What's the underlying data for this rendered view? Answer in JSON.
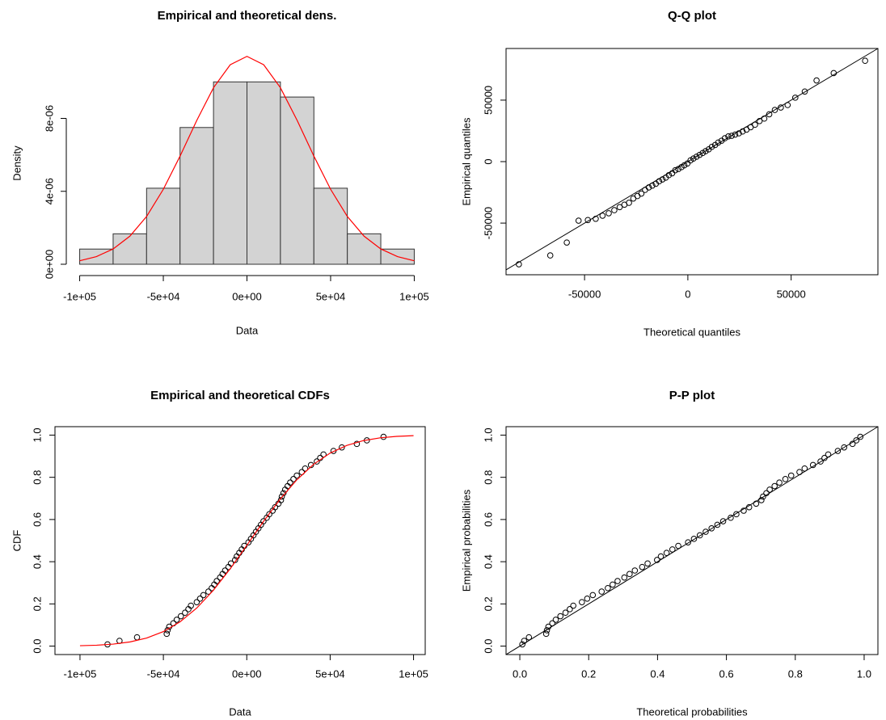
{
  "chart_data": [
    {
      "type": "histogram",
      "title": "Empirical and theoretical dens.",
      "x_label": "Data",
      "y_label": "Density",
      "bins": [
        -100000,
        -80000,
        -60000,
        -40000,
        -20000,
        0,
        20000,
        40000,
        60000,
        80000,
        100000
      ],
      "values": [
        8.33e-07,
        1.67e-06,
        4.17e-06,
        7.5e-06,
        1e-05,
        1e-05,
        9.17e-06,
        4.17e-06,
        1.67e-06,
        8.33e-07
      ],
      "color": "#d3d3d3",
      "series": [
        {
          "type": "line",
          "color": "#ff0000",
          "x": [
            -100000,
            -90000,
            -80000,
            -70000,
            -60000,
            -50000,
            -40000,
            -30000,
            -20000,
            -10000,
            0,
            10000,
            20000,
            30000,
            40000,
            50000,
            60000,
            70000,
            80000,
            90000,
            100000
          ],
          "values": [
            1.9e-07,
            4.2e-07,
            8.4e-07,
            1.54e-06,
            2.62e-06,
            4.11e-06,
            5.93e-06,
            7.89e-06,
            9.68e-06,
            1.094e-05,
            1.14e-05,
            1.094e-05,
            9.68e-06,
            7.89e-06,
            5.93e-06,
            4.11e-06,
            2.62e-06,
            1.54e-06,
            8.4e-07,
            4.2e-07,
            1.9e-07
          ]
        }
      ],
      "xlim": [
        -108000,
        108000
      ],
      "ylim": [
        -6.2e-07,
        1.17e-05
      ],
      "xticks": [
        {
          "value": -100000,
          "label": "-1e+05"
        },
        {
          "value": -50000,
          "label": "-5e+04"
        },
        {
          "value": 0,
          "label": "0e+00"
        },
        {
          "value": 50000,
          "label": "5e+04"
        },
        {
          "value": 100000,
          "label": "1e+05"
        }
      ],
      "yticks": [
        {
          "value": 0,
          "label": "0e+00"
        },
        {
          "value": 4e-06,
          "label": "4e-06"
        },
        {
          "value": 8e-06,
          "label": "8e-06"
        }
      ]
    },
    {
      "type": "scatter",
      "title": "Q-Q plot",
      "x_label": "Theoretical quantiles",
      "y_label": "Empirical quantiles",
      "diagonal": true,
      "series": [
        {
          "type": "points",
          "color": "#000000",
          "x": [
            -81800,
            -66600,
            -58600,
            -52900,
            -48400,
            -44600,
            -41300,
            -38300,
            -35600,
            -33000,
            -30700,
            -28500,
            -26400,
            -24400,
            -22500,
            -20700,
            -18900,
            -17200,
            -15500,
            -13900,
            -12300,
            -10700,
            -9200,
            -7600,
            -6100,
            -4600,
            -3100,
            -1700,
            -200,
            1300,
            2700,
            4200,
            5700,
            7200,
            8600,
            10100,
            11600,
            13200,
            14700,
            16300,
            17900,
            19600,
            21200,
            22900,
            24700,
            26500,
            28400,
            30400,
            32500,
            34700,
            37000,
            39400,
            42100,
            45000,
            48300,
            52000,
            56600,
            62300,
            70600,
            85800
          ],
          "values": [
            -83500,
            -76300,
            -65800,
            -48000,
            -47500,
            -46500,
            -44000,
            -42000,
            -39500,
            -37000,
            -35000,
            -33500,
            -30000,
            -28000,
            -26000,
            -23000,
            -21000,
            -19500,
            -18000,
            -16000,
            -14500,
            -13000,
            -11000,
            -9500,
            -7000,
            -6000,
            -4500,
            -3000,
            -1500,
            1000,
            2500,
            4000,
            5500,
            7000,
            8500,
            10000,
            12000,
            13500,
            15500,
            17000,
            19000,
            20500,
            21000,
            22000,
            23000,
            24500,
            26000,
            28000,
            30000,
            33000,
            35000,
            38500,
            42000,
            44000,
            46000,
            52000,
            57000,
            66000,
            72000,
            82000
          ]
        }
      ],
      "xlim": [
        -88000,
        92000
      ],
      "ylim": [
        -92000,
        92000
      ],
      "xticks": [
        -50000,
        0,
        50000
      ],
      "yticks": [
        -50000,
        0,
        50000
      ]
    },
    {
      "type": "scatter",
      "title": "Empirical and theoretical CDFs",
      "x_label": "Data",
      "y_label": "CDF",
      "series": [
        {
          "type": "points",
          "color": "#000000",
          "x": [
            -83500,
            -76300,
            -65800,
            -48000,
            -47500,
            -46500,
            -44000,
            -42000,
            -39500,
            -37000,
            -35000,
            -33500,
            -30000,
            -28000,
            -26000,
            -23000,
            -21000,
            -19500,
            -18000,
            -16000,
            -14500,
            -13000,
            -11000,
            -9500,
            -7000,
            -6000,
            -4500,
            -3000,
            -1500,
            1000,
            2500,
            4000,
            5500,
            7000,
            8500,
            10000,
            12000,
            13500,
            15500,
            17000,
            19000,
            20500,
            21000,
            22000,
            23000,
            24500,
            26000,
            28000,
            30000,
            33000,
            35000,
            38500,
            42000,
            44000,
            46000,
            52000,
            57000,
            66000,
            72000,
            82000
          ],
          "values": [
            0.0083,
            0.025,
            0.0417,
            0.0583,
            0.075,
            0.0917,
            0.1083,
            0.125,
            0.1417,
            0.1583,
            0.175,
            0.1917,
            0.2083,
            0.225,
            0.2417,
            0.2583,
            0.275,
            0.2917,
            0.3083,
            0.325,
            0.3417,
            0.3583,
            0.375,
            0.3917,
            0.4083,
            0.425,
            0.4417,
            0.4583,
            0.475,
            0.4917,
            0.5083,
            0.525,
            0.5417,
            0.5583,
            0.575,
            0.5917,
            0.6083,
            0.625,
            0.6417,
            0.6583,
            0.675,
            0.6917,
            0.7083,
            0.725,
            0.7417,
            0.7583,
            0.775,
            0.7917,
            0.8083,
            0.825,
            0.8417,
            0.8583,
            0.875,
            0.8917,
            0.9083,
            0.925,
            0.9417,
            0.9583,
            0.975,
            0.9917
          ]
        },
        {
          "type": "line",
          "color": "#ff0000",
          "x": [
            -100000,
            -90000,
            -80000,
            -70000,
            -60000,
            -50000,
            -40000,
            -30000,
            -20000,
            -10000,
            0,
            10000,
            20000,
            30000,
            40000,
            50000,
            60000,
            70000,
            80000,
            90000,
            100000
          ],
          "values": [
            0.0018,
            0.0043,
            0.0096,
            0.0198,
            0.0383,
            0.0687,
            0.1151,
            0.1803,
            0.2648,
            0.3658,
            0.4772,
            0.5905,
            0.6964,
            0.7881,
            0.8612,
            0.9149,
            0.9512,
            0.974,
            0.9871,
            0.994,
            0.9974
          ]
        }
      ],
      "xlim": [
        -115000,
        107000
      ],
      "ylim": [
        -0.04,
        1.04
      ],
      "xticks": [
        {
          "value": -100000,
          "label": "-1e+05"
        },
        {
          "value": -50000,
          "label": "-5e+04"
        },
        {
          "value": 0,
          "label": "0e+00"
        },
        {
          "value": 50000,
          "label": "5e+04"
        },
        {
          "value": 100000,
          "label": "1e+05"
        }
      ],
      "yticks": [
        {
          "value": 0,
          "label": "0.0"
        },
        0.2,
        0.4,
        0.6,
        0.8,
        {
          "value": 1,
          "label": "1.0"
        }
      ]
    },
    {
      "type": "scatter",
      "title": "P-P plot",
      "x_label": "Theoretical probabilities",
      "y_label": "Empirical probabilities",
      "diagonal": true,
      "series": [
        {
          "type": "points",
          "color": "#000000",
          "x": [
            0.0073,
            0.0126,
            0.0264,
            0.0765,
            0.0787,
            0.0829,
            0.0944,
            0.1044,
            0.1178,
            0.1326,
            0.1452,
            0.1553,
            0.1803,
            0.1957,
            0.2119,
            0.2376,
            0.2556,
            0.2696,
            0.2839,
            0.3036,
            0.3188,
            0.334,
            0.3553,
            0.3711,
            0.3986,
            0.4096,
            0.4263,
            0.4431,
            0.4602,
            0.4886,
            0.5057,
            0.5228,
            0.5398,
            0.5569,
            0.5737,
            0.5905,
            0.6125,
            0.6289,
            0.6502,
            0.666,
            0.6864,
            0.7015,
            0.7064,
            0.7161,
            0.7257,
            0.7399,
            0.7537,
            0.7712,
            0.7881,
            0.8122,
            0.8271,
            0.8515,
            0.8734,
            0.8849,
            0.8956,
            0.9235,
            0.9419,
            0.9663,
            0.9772,
            0.9889
          ],
          "values": [
            0.0083,
            0.025,
            0.0417,
            0.0583,
            0.075,
            0.0917,
            0.1083,
            0.125,
            0.1417,
            0.1583,
            0.175,
            0.1917,
            0.2083,
            0.225,
            0.2417,
            0.2583,
            0.275,
            0.2917,
            0.3083,
            0.325,
            0.3417,
            0.3583,
            0.375,
            0.3917,
            0.4083,
            0.425,
            0.4417,
            0.4583,
            0.475,
            0.4917,
            0.5083,
            0.525,
            0.5417,
            0.5583,
            0.575,
            0.5917,
            0.6083,
            0.625,
            0.6417,
            0.6583,
            0.675,
            0.6917,
            0.7083,
            0.725,
            0.7417,
            0.7583,
            0.775,
            0.7917,
            0.8083,
            0.825,
            0.8417,
            0.8583,
            0.875,
            0.8917,
            0.9083,
            0.925,
            0.9417,
            0.9583,
            0.975,
            0.9917
          ]
        }
      ],
      "xlim": [
        -0.04,
        1.04
      ],
      "ylim": [
        -0.04,
        1.04
      ],
      "xticks": [
        {
          "value": 0,
          "label": "0.0"
        },
        0.2,
        0.4,
        0.6,
        0.8,
        {
          "value": 1,
          "label": "1.0"
        }
      ],
      "yticks": [
        {
          "value": 0,
          "label": "0.0"
        },
        0.2,
        0.4,
        0.6,
        0.8,
        {
          "value": 1,
          "label": "1.0"
        }
      ]
    }
  ]
}
